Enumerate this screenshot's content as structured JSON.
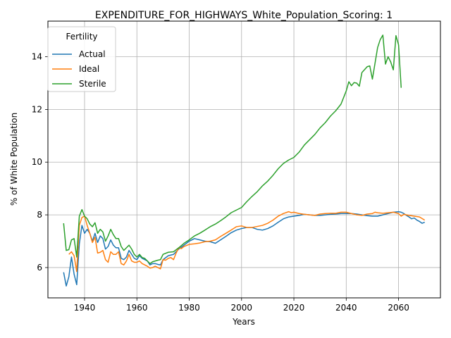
{
  "chart_data": {
    "type": "line",
    "title": "EXPENDITURE_FOR_HIGHWAYS_White_Population_Scoring: 1",
    "xlabel": "Years",
    "ylabel": "% of White Population",
    "xlim": [
      1926,
      2076
    ],
    "ylim": [
      4.85,
      15.35
    ],
    "xticks": [
      1940,
      1960,
      1980,
      2000,
      2020,
      2040,
      2060
    ],
    "yticks": [
      6,
      8,
      10,
      12,
      14
    ],
    "grid": true,
    "legend": {
      "title": "Fertility",
      "position": "upper-left"
    },
    "colors": {
      "Actual": "#1f77b4",
      "Ideal": "#ff7f0e",
      "Sterile": "#2ca02c"
    },
    "series": [
      {
        "name": "Actual",
        "points": [
          [
            1932,
            5.82
          ],
          [
            1933,
            5.3
          ],
          [
            1934,
            5.65
          ],
          [
            1935,
            6.4
          ],
          [
            1936,
            5.75
          ],
          [
            1937,
            5.35
          ],
          [
            1938,
            6.9
          ],
          [
            1939,
            7.6
          ],
          [
            1940,
            7.3
          ],
          [
            1941,
            7.45
          ],
          [
            1942,
            7.3
          ],
          [
            1943,
            7.0
          ],
          [
            1944,
            7.3
          ],
          [
            1945,
            6.95
          ],
          [
            1946,
            7.2
          ],
          [
            1947,
            7.1
          ],
          [
            1948,
            6.7
          ],
          [
            1949,
            6.8
          ],
          [
            1950,
            7.05
          ],
          [
            1951,
            6.85
          ],
          [
            1952,
            6.75
          ],
          [
            1953,
            6.75
          ],
          [
            1954,
            6.35
          ],
          [
            1955,
            6.3
          ],
          [
            1956,
            6.4
          ],
          [
            1957,
            6.65
          ],
          [
            1958,
            6.5
          ],
          [
            1959,
            6.35
          ],
          [
            1960,
            6.3
          ],
          [
            1961,
            6.45
          ],
          [
            1962,
            6.35
          ],
          [
            1963,
            6.3
          ],
          [
            1964,
            6.25
          ],
          [
            1965,
            6.1
          ],
          [
            1966,
            6.15
          ],
          [
            1967,
            6.15
          ],
          [
            1968,
            6.12
          ],
          [
            1969,
            6.1
          ],
          [
            1970,
            6.3
          ],
          [
            1972,
            6.45
          ],
          [
            1974,
            6.5
          ],
          [
            1976,
            6.7
          ],
          [
            1978,
            6.85
          ],
          [
            1980,
            7.0
          ],
          [
            1982,
            7.1
          ],
          [
            1984,
            7.05
          ],
          [
            1986,
            7.0
          ],
          [
            1988,
            6.98
          ],
          [
            1990,
            6.92
          ],
          [
            1992,
            7.05
          ],
          [
            1994,
            7.18
          ],
          [
            1996,
            7.32
          ],
          [
            1998,
            7.42
          ],
          [
            2000,
            7.48
          ],
          [
            2002,
            7.52
          ],
          [
            2004,
            7.52
          ],
          [
            2006,
            7.45
          ],
          [
            2008,
            7.42
          ],
          [
            2010,
            7.48
          ],
          [
            2012,
            7.58
          ],
          [
            2014,
            7.72
          ],
          [
            2016,
            7.85
          ],
          [
            2018,
            7.92
          ],
          [
            2020,
            7.95
          ],
          [
            2022,
            7.98
          ],
          [
            2024,
            8.02
          ],
          [
            2026,
            8.0
          ],
          [
            2028,
            7.98
          ],
          [
            2030,
            7.98
          ],
          [
            2032,
            8.0
          ],
          [
            2034,
            8.02
          ],
          [
            2036,
            8.03
          ],
          [
            2038,
            8.05
          ],
          [
            2040,
            8.05
          ],
          [
            2042,
            8.05
          ],
          [
            2044,
            8.03
          ],
          [
            2046,
            8.0
          ],
          [
            2048,
            7.97
          ],
          [
            2050,
            7.95
          ],
          [
            2052,
            7.95
          ],
          [
            2054,
            8.0
          ],
          [
            2056,
            8.05
          ],
          [
            2058,
            8.1
          ],
          [
            2060,
            8.12
          ],
          [
            2061,
            8.1
          ],
          [
            2062,
            8.05
          ],
          [
            2063,
            7.98
          ],
          [
            2064,
            7.92
          ],
          [
            2065,
            7.85
          ],
          [
            2066,
            7.88
          ],
          [
            2067,
            7.8
          ],
          [
            2068,
            7.75
          ],
          [
            2069,
            7.68
          ],
          [
            2070,
            7.72
          ]
        ]
      },
      {
        "name": "Ideal",
        "points": [
          [
            1934,
            6.5
          ],
          [
            1935,
            6.6
          ],
          [
            1936,
            6.45
          ],
          [
            1937,
            5.85
          ],
          [
            1938,
            7.6
          ],
          [
            1939,
            7.9
          ],
          [
            1940,
            7.95
          ],
          [
            1941,
            7.6
          ],
          [
            1942,
            7.3
          ],
          [
            1943,
            6.95
          ],
          [
            1944,
            7.15
          ],
          [
            1945,
            6.55
          ],
          [
            1946,
            6.58
          ],
          [
            1947,
            6.65
          ],
          [
            1948,
            6.3
          ],
          [
            1949,
            6.2
          ],
          [
            1950,
            6.6
          ],
          [
            1951,
            6.5
          ],
          [
            1952,
            6.5
          ],
          [
            1953,
            6.6
          ],
          [
            1954,
            6.15
          ],
          [
            1955,
            6.1
          ],
          [
            1956,
            6.25
          ],
          [
            1957,
            6.5
          ],
          [
            1958,
            6.25
          ],
          [
            1959,
            6.2
          ],
          [
            1960,
            6.2
          ],
          [
            1961,
            6.25
          ],
          [
            1962,
            6.15
          ],
          [
            1963,
            6.1
          ],
          [
            1964,
            6.05
          ],
          [
            1965,
            5.98
          ],
          [
            1966,
            6.0
          ],
          [
            1967,
            6.05
          ],
          [
            1968,
            6.0
          ],
          [
            1969,
            5.95
          ],
          [
            1970,
            6.3
          ],
          [
            1971,
            6.28
          ],
          [
            1972,
            6.35
          ],
          [
            1973,
            6.38
          ],
          [
            1974,
            6.3
          ],
          [
            1975,
            6.55
          ],
          [
            1976,
            6.75
          ],
          [
            1977,
            6.72
          ],
          [
            1978,
            6.8
          ],
          [
            1980,
            6.88
          ],
          [
            1982,
            6.9
          ],
          [
            1984,
            6.93
          ],
          [
            1986,
            6.98
          ],
          [
            1988,
            7.0
          ],
          [
            1990,
            7.05
          ],
          [
            1992,
            7.18
          ],
          [
            1994,
            7.3
          ],
          [
            1996,
            7.42
          ],
          [
            1998,
            7.55
          ],
          [
            2000,
            7.58
          ],
          [
            2002,
            7.52
          ],
          [
            2004,
            7.52
          ],
          [
            2006,
            7.56
          ],
          [
            2008,
            7.6
          ],
          [
            2010,
            7.68
          ],
          [
            2012,
            7.8
          ],
          [
            2014,
            7.95
          ],
          [
            2016,
            8.05
          ],
          [
            2018,
            8.12
          ],
          [
            2019,
            8.08
          ],
          [
            2020,
            8.1
          ],
          [
            2022,
            8.05
          ],
          [
            2024,
            8.02
          ],
          [
            2026,
            8.0
          ],
          [
            2028,
            7.98
          ],
          [
            2030,
            8.03
          ],
          [
            2032,
            8.05
          ],
          [
            2034,
            8.06
          ],
          [
            2036,
            8.06
          ],
          [
            2038,
            8.1
          ],
          [
            2040,
            8.1
          ],
          [
            2042,
            8.05
          ],
          [
            2044,
            8.0
          ],
          [
            2046,
            7.98
          ],
          [
            2048,
            8.03
          ],
          [
            2050,
            8.05
          ],
          [
            2051,
            8.1
          ],
          [
            2052,
            8.08
          ],
          [
            2054,
            8.06
          ],
          [
            2056,
            8.08
          ],
          [
            2058,
            8.1
          ],
          [
            2060,
            8.05
          ],
          [
            2061,
            7.95
          ],
          [
            2062,
            8.02
          ],
          [
            2064,
            7.98
          ],
          [
            2066,
            7.95
          ],
          [
            2068,
            7.92
          ],
          [
            2070,
            7.8
          ]
        ]
      },
      {
        "name": "Sterile",
        "points": [
          [
            1932,
            7.68
          ],
          [
            1933,
            6.65
          ],
          [
            1934,
            6.68
          ],
          [
            1935,
            7.05
          ],
          [
            1936,
            7.1
          ],
          [
            1937,
            6.4
          ],
          [
            1938,
            7.95
          ],
          [
            1939,
            8.2
          ],
          [
            1940,
            7.95
          ],
          [
            1941,
            7.85
          ],
          [
            1942,
            7.65
          ],
          [
            1943,
            7.55
          ],
          [
            1944,
            7.7
          ],
          [
            1945,
            7.3
          ],
          [
            1946,
            7.45
          ],
          [
            1947,
            7.35
          ],
          [
            1948,
            7.0
          ],
          [
            1949,
            7.2
          ],
          [
            1950,
            7.45
          ],
          [
            1951,
            7.25
          ],
          [
            1952,
            7.1
          ],
          [
            1953,
            7.1
          ],
          [
            1954,
            6.8
          ],
          [
            1955,
            6.65
          ],
          [
            1956,
            6.75
          ],
          [
            1957,
            6.85
          ],
          [
            1958,
            6.7
          ],
          [
            1959,
            6.5
          ],
          [
            1960,
            6.4
          ],
          [
            1961,
            6.5
          ],
          [
            1962,
            6.38
          ],
          [
            1963,
            6.35
          ],
          [
            1964,
            6.25
          ],
          [
            1965,
            6.15
          ],
          [
            1966,
            6.22
          ],
          [
            1967,
            6.25
          ],
          [
            1968,
            6.28
          ],
          [
            1969,
            6.3
          ],
          [
            1970,
            6.5
          ],
          [
            1972,
            6.58
          ],
          [
            1974,
            6.6
          ],
          [
            1976,
            6.75
          ],
          [
            1978,
            6.92
          ],
          [
            1980,
            7.05
          ],
          [
            1982,
            7.2
          ],
          [
            1984,
            7.3
          ],
          [
            1986,
            7.42
          ],
          [
            1988,
            7.55
          ],
          [
            1990,
            7.65
          ],
          [
            1992,
            7.78
          ],
          [
            1994,
            7.92
          ],
          [
            1996,
            8.08
          ],
          [
            1998,
            8.18
          ],
          [
            2000,
            8.28
          ],
          [
            2002,
            8.5
          ],
          [
            2004,
            8.7
          ],
          [
            2006,
            8.88
          ],
          [
            2008,
            9.1
          ],
          [
            2010,
            9.28
          ],
          [
            2012,
            9.5
          ],
          [
            2014,
            9.75
          ],
          [
            2016,
            9.95
          ],
          [
            2018,
            10.08
          ],
          [
            2020,
            10.18
          ],
          [
            2022,
            10.38
          ],
          [
            2024,
            10.65
          ],
          [
            2026,
            10.85
          ],
          [
            2028,
            11.05
          ],
          [
            2030,
            11.3
          ],
          [
            2032,
            11.5
          ],
          [
            2034,
            11.75
          ],
          [
            2036,
            11.95
          ],
          [
            2038,
            12.2
          ],
          [
            2040,
            12.7
          ],
          [
            2041,
            13.05
          ],
          [
            2042,
            12.9
          ],
          [
            2043,
            13.02
          ],
          [
            2044,
            13.0
          ],
          [
            2045,
            12.88
          ],
          [
            2046,
            13.4
          ],
          [
            2048,
            13.62
          ],
          [
            2049,
            13.65
          ],
          [
            2050,
            13.15
          ],
          [
            2051,
            13.75
          ],
          [
            2052,
            14.35
          ],
          [
            2053,
            14.65
          ],
          [
            2054,
            14.82
          ],
          [
            2055,
            13.72
          ],
          [
            2056,
            14.0
          ],
          [
            2057,
            13.8
          ],
          [
            2058,
            13.5
          ],
          [
            2059,
            14.8
          ],
          [
            2060,
            14.45
          ],
          [
            2061,
            12.82
          ]
        ]
      }
    ]
  }
}
